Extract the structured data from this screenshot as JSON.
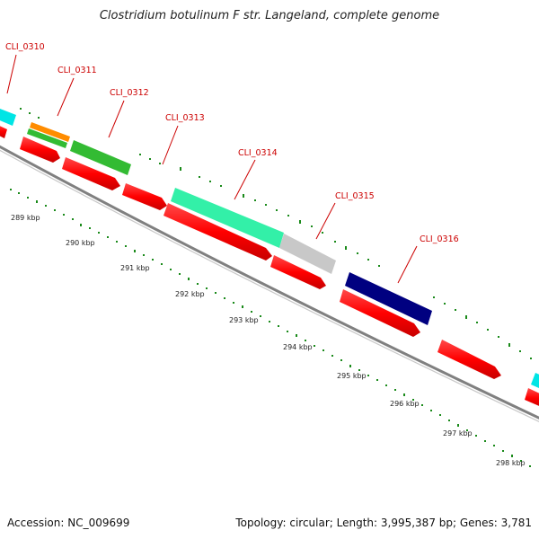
{
  "title": "Clostridium botulinum F str. Langeland, complete genome",
  "footer": {
    "accession": "Accession: NC_009699",
    "topology": "Topology: circular; Length: 3,995,387 bp; Genes: 3,781"
  },
  "genes": [
    "CLI_0310",
    "CLI_0311",
    "CLI_0312",
    "CLI_0313",
    "CLI_0314",
    "CLI_0315",
    "CLI_0316"
  ],
  "ticks": [
    "289 kbp",
    "290 kbp",
    "291 kbp",
    "292 kbp",
    "293 kbp",
    "294 kbp",
    "295 kbp",
    "296 kbp",
    "297 kbp",
    "298 kbp"
  ],
  "colors": {
    "gene_label": "#cc0000",
    "cds_forward": "#ff0000",
    "backbone": "#808080",
    "tick": "#2e8b2e",
    "cyan": "#00e5e5",
    "orange": "#ff8c00",
    "green": "#33bb33",
    "seafoam": "#33f0a8",
    "silver": "#c8c8c8",
    "navy": "#000080"
  }
}
